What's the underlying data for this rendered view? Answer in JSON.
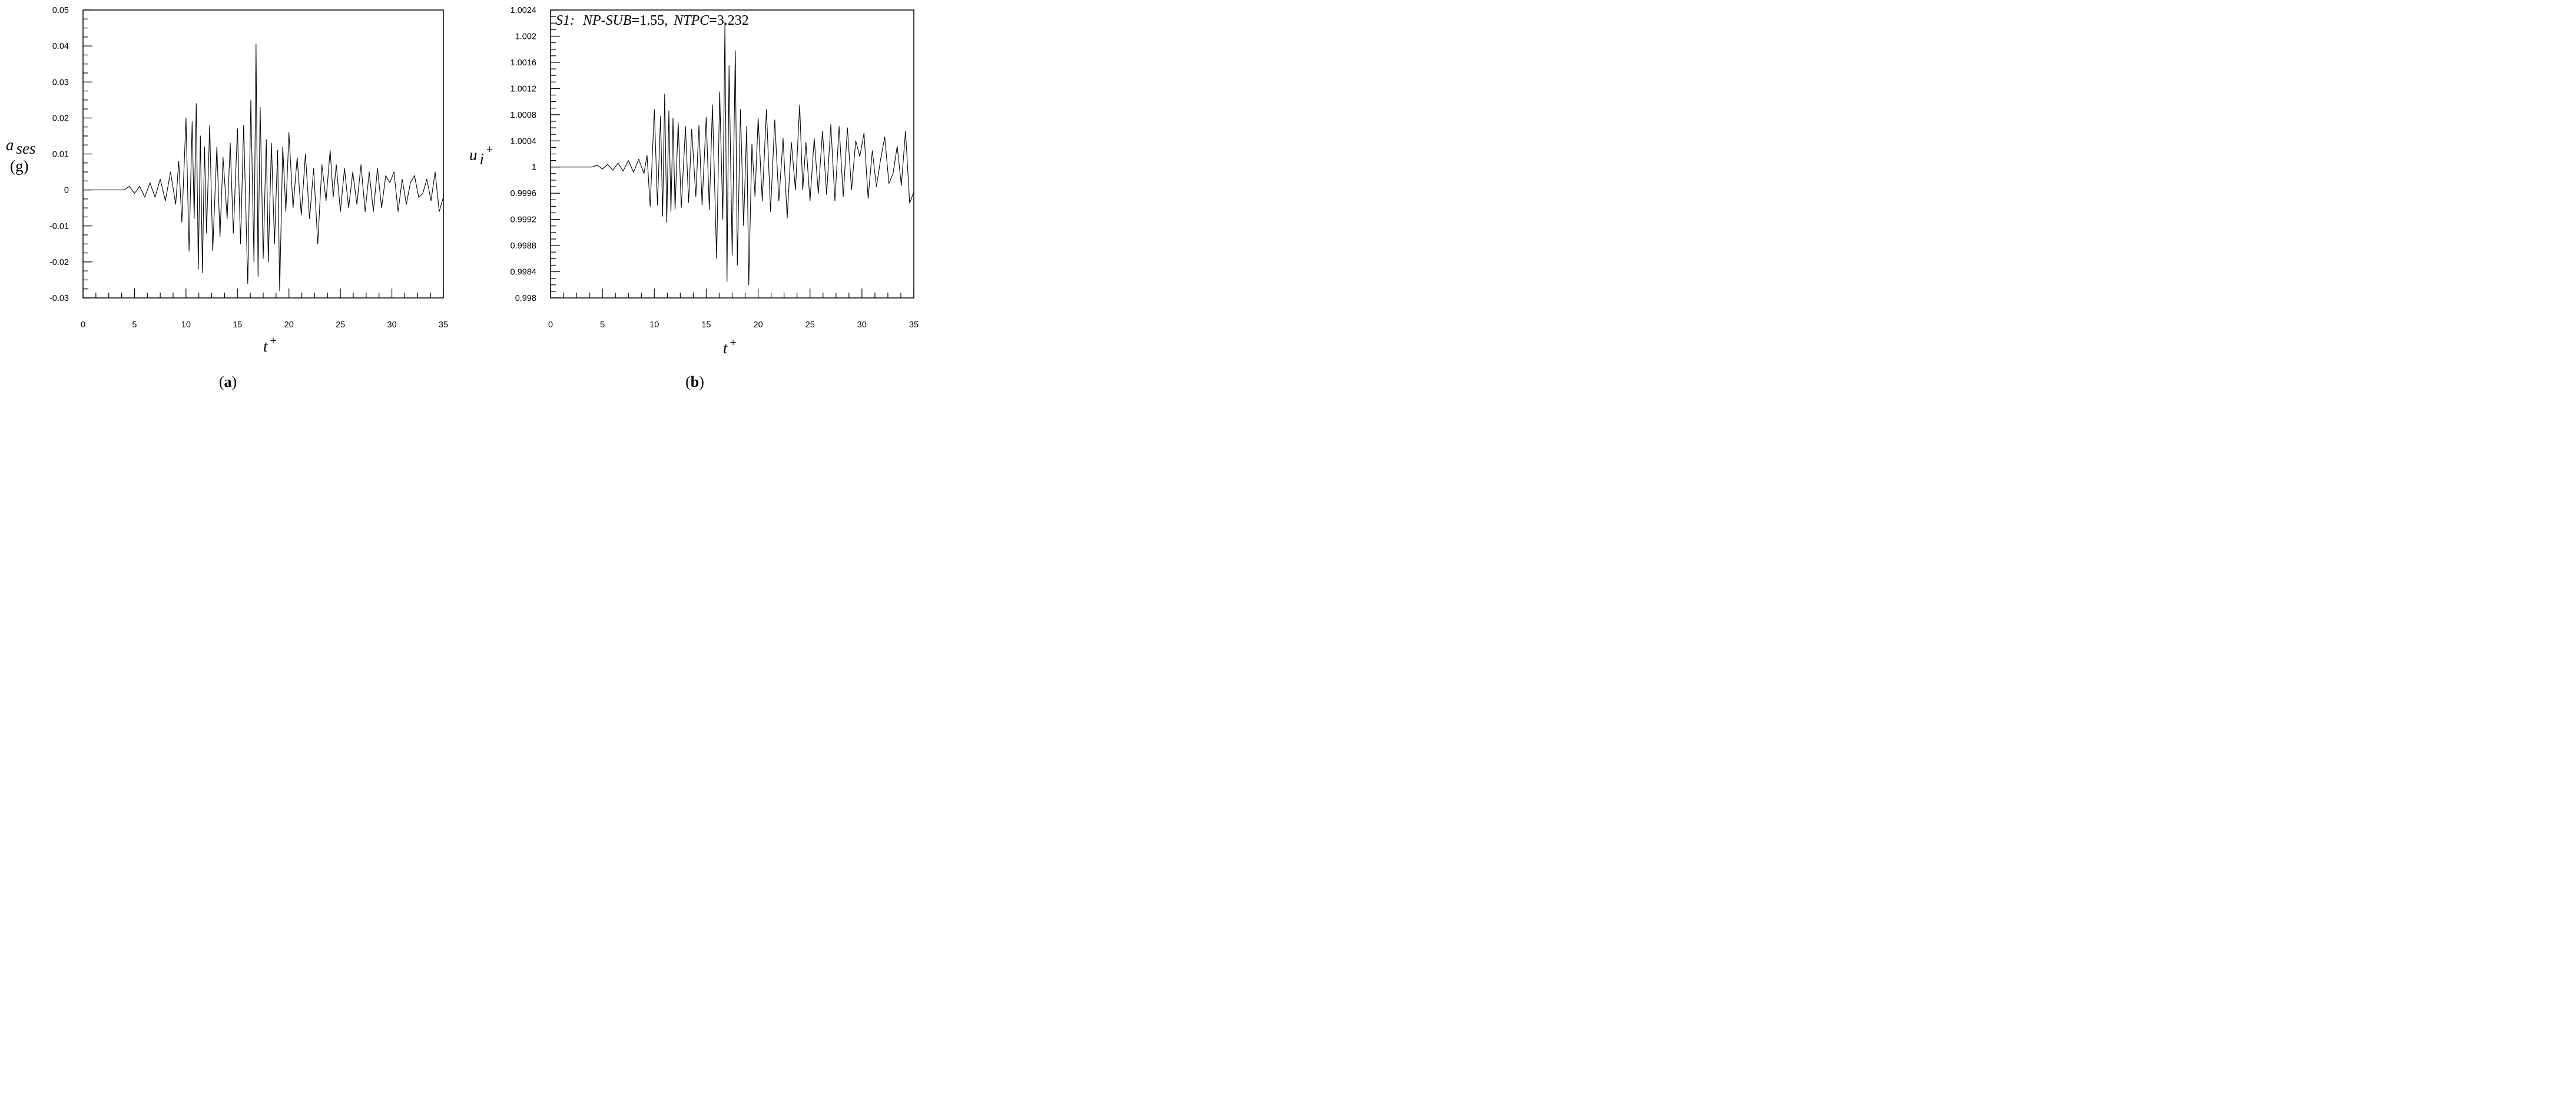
{
  "chart_data": [
    {
      "panel": "a",
      "type": "line",
      "caption": "a",
      "xlabel": "t",
      "xlabel_sup": "+",
      "ylabel": "a",
      "ylabel_sub": "ses",
      "yunit": "(g)",
      "xlim": [
        0,
        35
      ],
      "ylim": [
        -0.03,
        0.05
      ],
      "x_ticks": [
        0,
        5,
        10,
        15,
        20,
        25,
        30,
        35
      ],
      "x_tick_labels": [
        "0",
        "5",
        "10",
        "15",
        "20",
        "25",
        "30",
        "35"
      ],
      "x_minor_step": 1.25,
      "y_ticks": [
        -0.03,
        -0.02,
        -0.01,
        0,
        0.01,
        0.02,
        0.03,
        0.04,
        0.05
      ],
      "y_tick_labels": [
        "-0.03",
        "-0.02",
        "-0.01",
        "0",
        "0.01",
        "0.02",
        "0.03",
        "0.04",
        "0.05"
      ],
      "y_minor_step": 0.0025,
      "grid": false,
      "series": [
        {
          "color": "#000000",
          "x": [
            0,
            2,
            4,
            4.5,
            5,
            5.5,
            6,
            6.5,
            7,
            7.5,
            8,
            8.5,
            9,
            9.3,
            9.6,
            10,
            10.3,
            10.6,
            10.8,
            11,
            11.2,
            11.4,
            11.6,
            11.8,
            12,
            12.3,
            12.6,
            13,
            13.3,
            13.6,
            14,
            14.3,
            14.6,
            15,
            15.3,
            15.6,
            16,
            16.3,
            16.6,
            16.8,
            17,
            17.2,
            17.5,
            17.8,
            18,
            18.3,
            18.6,
            18.9,
            19.1,
            19.4,
            19.7,
            20,
            20.4,
            20.8,
            21.2,
            21.6,
            22,
            22.4,
            22.8,
            23.2,
            23.6,
            24,
            24.3,
            24.6,
            25,
            25.4,
            25.8,
            26.2,
            26.6,
            27,
            27.4,
            27.8,
            28.2,
            28.6,
            29,
            29.4,
            29.8,
            30.2,
            30.6,
            31,
            31.4,
            31.8,
            32.2,
            32.6,
            33,
            33.4,
            33.8,
            34.2,
            34.6,
            35
          ],
          "y": [
            0,
            0,
            0,
            0.001,
            -0.001,
            0.001,
            -0.002,
            0.002,
            -0.002,
            0.003,
            -0.003,
            0.005,
            -0.004,
            0.008,
            -0.009,
            0.02,
            -0.017,
            0.019,
            -0.008,
            0.024,
            -0.022,
            0.015,
            -0.023,
            0.012,
            -0.012,
            0.018,
            -0.017,
            0.012,
            -0.013,
            0.009,
            -0.008,
            0.013,
            -0.012,
            0.017,
            -0.015,
            0.018,
            -0.026,
            0.025,
            -0.02,
            0.0405,
            -0.024,
            0.023,
            -0.019,
            0.014,
            -0.02,
            0.013,
            -0.015,
            0.011,
            -0.028,
            0.012,
            -0.006,
            0.016,
            -0.005,
            0.009,
            -0.007,
            0.01,
            -0.008,
            0.006,
            -0.015,
            0.007,
            -0.003,
            0.011,
            -0.002,
            0.007,
            -0.006,
            0.006,
            -0.005,
            0.005,
            -0.004,
            0.007,
            -0.006,
            0.005,
            -0.006,
            0.006,
            -0.005,
            0.004,
            0.002,
            0.005,
            -0.006,
            0.003,
            -0.004,
            0.002,
            0.004,
            -0.002,
            -0.001,
            0.003,
            -0.003,
            0.005,
            -0.006,
            -0.002
          ]
        }
      ]
    },
    {
      "panel": "b",
      "type": "line",
      "caption": "b",
      "xlabel": "t",
      "xlabel_sup": "+",
      "ylabel": "u",
      "ylabel_sub": "i",
      "ylabel_sup": "+",
      "xlim": [
        0,
        35
      ],
      "ylim": [
        0.998,
        1.0024
      ],
      "x_ticks": [
        0,
        5,
        10,
        15,
        20,
        25,
        30,
        35
      ],
      "x_tick_labels": [
        "0",
        "5",
        "10",
        "15",
        "20",
        "25",
        "30",
        "35"
      ],
      "x_minor_step": 1.25,
      "y_ticks": [
        0.998,
        0.9984,
        0.9988,
        0.9992,
        0.9996,
        1,
        1.0004,
        1.0008,
        1.0012,
        1.0016,
        1.002,
        1.0024
      ],
      "y_tick_labels": [
        "0.998",
        "0.9984",
        "0.9988",
        "0.9992",
        "0.9996",
        "1",
        "1.0004",
        "1.0008",
        "1.0012",
        "1.0016",
        "1.002",
        "1.0024"
      ],
      "y_minor_step": 0.0001,
      "grid": false,
      "annotation": {
        "case": "S1:",
        "n1_main": "N",
        "n1_sub": "P-SUB",
        "n1_value": "=1.55,",
        "n2_main": "N",
        "n2_sub": "TPC",
        "n2_value": "=3.232"
      },
      "series": [
        {
          "color": "#000000",
          "x": [
            0,
            2,
            4,
            4.5,
            5,
            5.5,
            6,
            6.5,
            7,
            7.5,
            8,
            8.5,
            9,
            9.3,
            9.6,
            10,
            10.3,
            10.6,
            10.8,
            11,
            11.2,
            11.4,
            11.6,
            11.8,
            12,
            12.3,
            12.6,
            13,
            13.3,
            13.6,
            14,
            14.3,
            14.6,
            15,
            15.3,
            15.6,
            16,
            16.3,
            16.6,
            16.8,
            17,
            17.2,
            17.5,
            17.8,
            18,
            18.3,
            18.6,
            18.9,
            19.1,
            19.4,
            19.7,
            20,
            20.4,
            20.8,
            21.2,
            21.6,
            22,
            22.4,
            22.8,
            23.2,
            23.6,
            24,
            24.3,
            24.6,
            25,
            25.4,
            25.8,
            26.2,
            26.6,
            27,
            27.4,
            27.8,
            28.2,
            28.6,
            29,
            29.4,
            29.8,
            30.2,
            30.6,
            31,
            31.4,
            31.8,
            32.2,
            32.6,
            33,
            33.4,
            33.8,
            34.2,
            34.6,
            35
          ],
          "y": [
            1,
            1,
            1,
            1.00003,
            0.99997,
            1.00004,
            0.99995,
            1.00006,
            0.99994,
            1.0001,
            0.99992,
            1.00012,
            0.9999,
            1.00018,
            0.9994,
            1.00088,
            0.99942,
            1.00078,
            0.99925,
            1.00112,
            0.99915,
            1.00086,
            0.99932,
            1.00075,
            0.99935,
            1.00068,
            0.99938,
            1.00062,
            0.99946,
            1.00058,
            0.99955,
            1.00064,
            0.99942,
            1.00076,
            0.99935,
            1.00095,
            0.9986,
            1.00115,
            0.9992,
            1.00222,
            0.99825,
            1.00155,
            0.99865,
            1.00178,
            0.9985,
            1.00088,
            0.9991,
            1.00062,
            0.9982,
            1.00035,
            0.99955,
            1.00075,
            0.99948,
            1.00088,
            0.99932,
            1.00072,
            0.99948,
            1.00044,
            0.99922,
            1.00038,
            0.99965,
            1.00095,
            0.99965,
            1.00038,
            0.99948,
            1.00044,
            0.9996,
            1.00055,
            0.99958,
            1.00065,
            0.99948,
            1.00062,
            0.99955,
            1.0006,
            0.99965,
            1.0004,
            1.00016,
            1.00052,
            0.99952,
            1.00025,
            0.9997,
            1.00012,
            1.00046,
            0.99975,
            0.9999,
            1.00032,
            0.99972,
            1.00055,
            0.99945,
            0.99962
          ]
        }
      ]
    }
  ]
}
